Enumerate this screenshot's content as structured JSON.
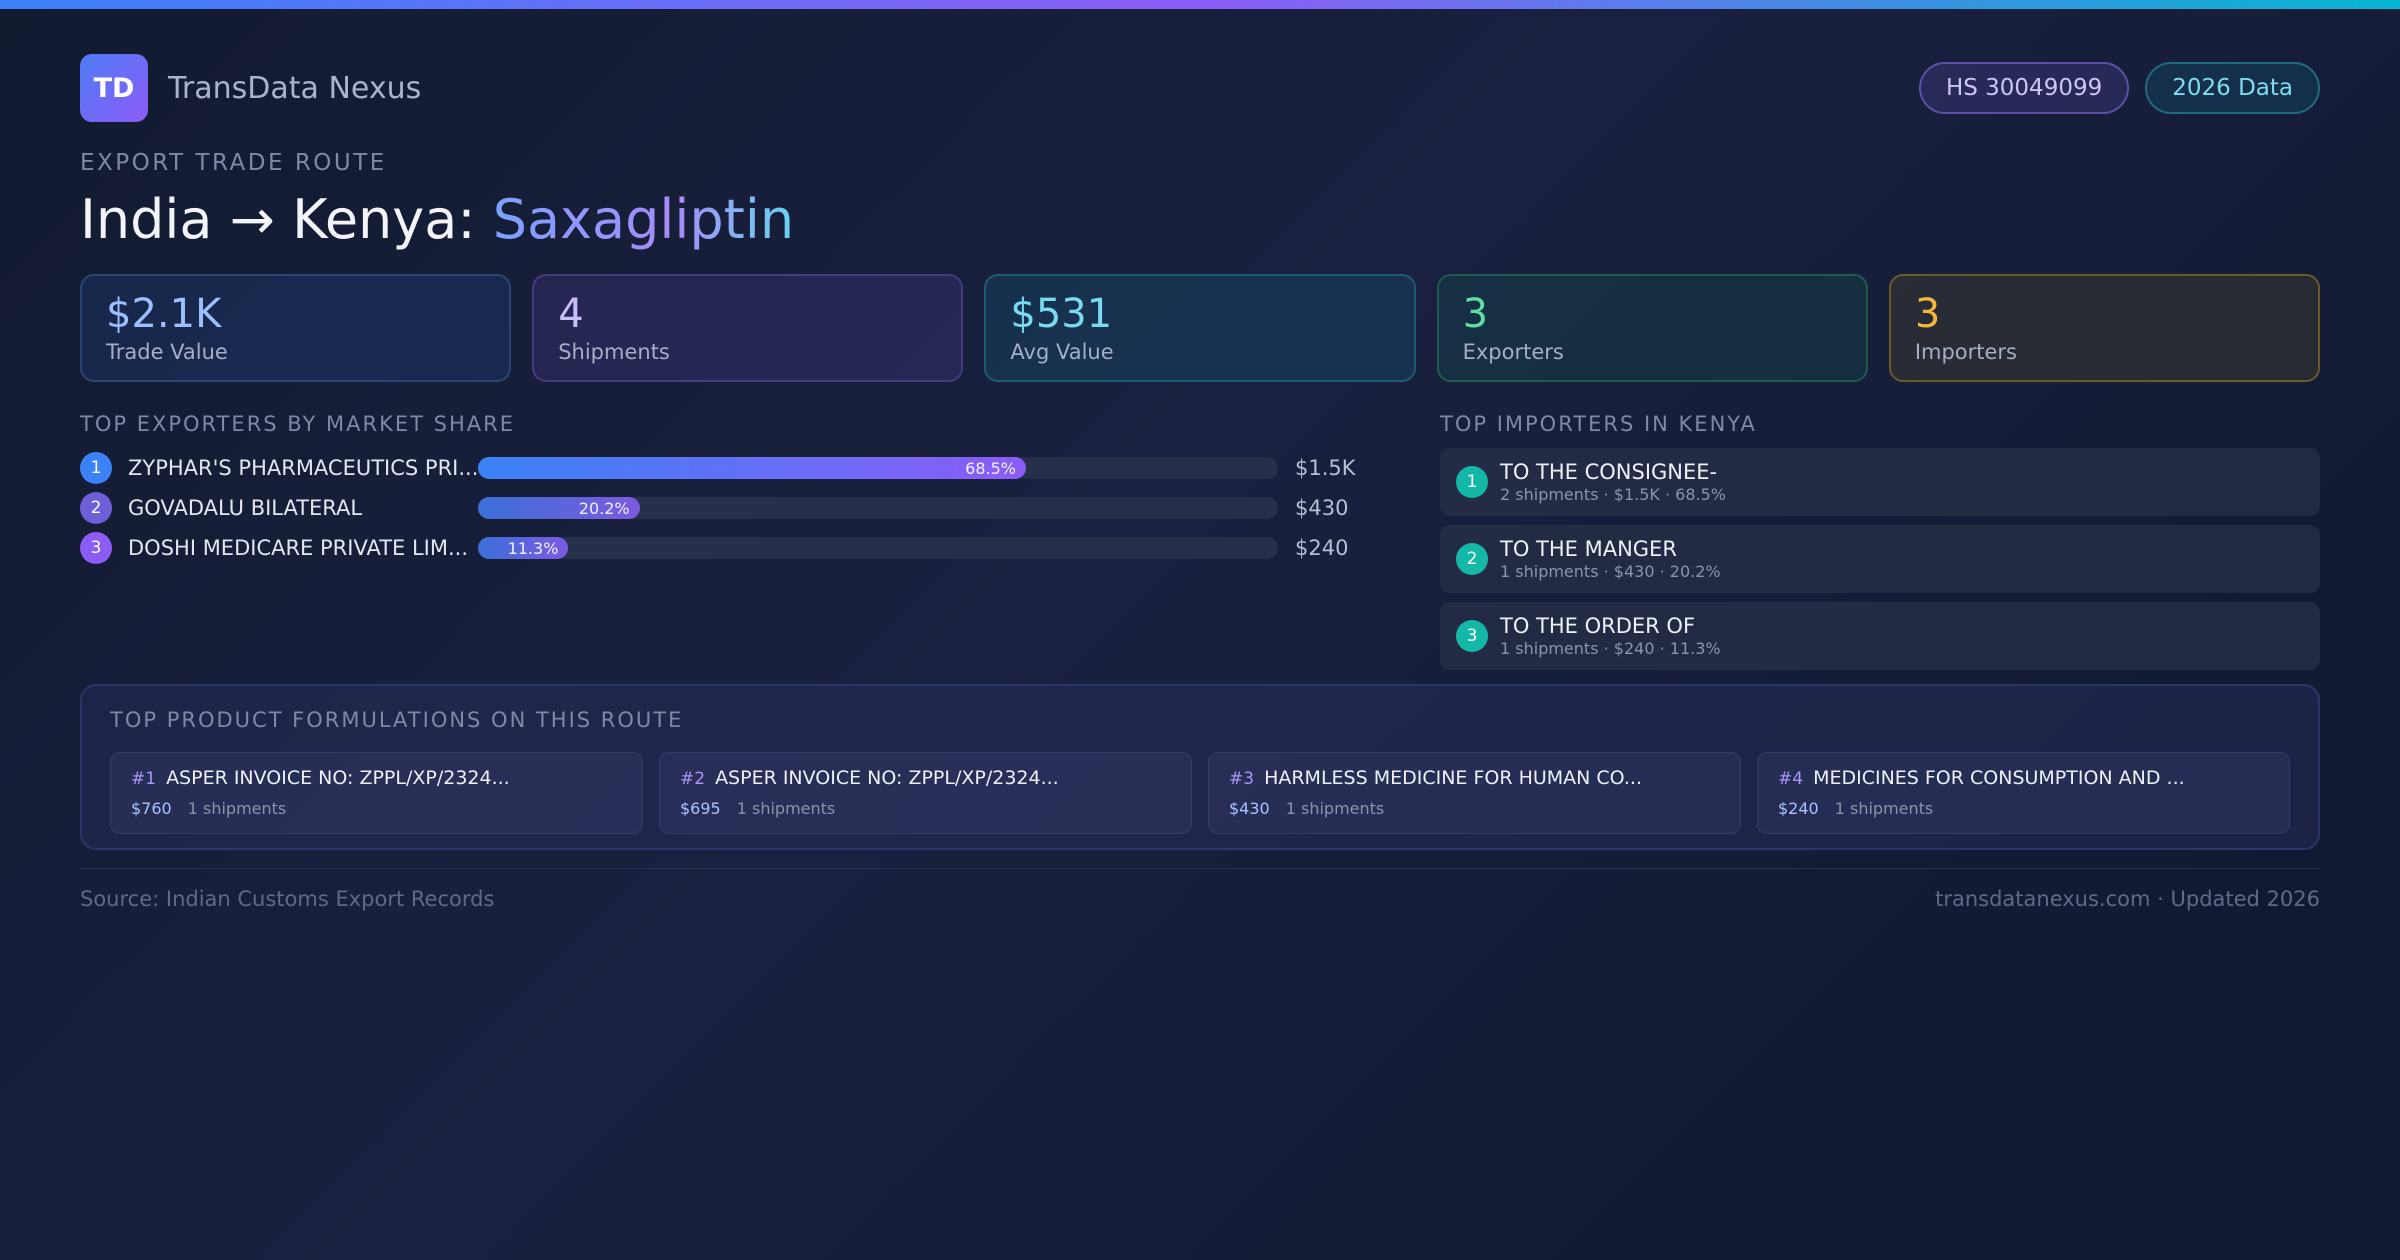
{
  "brand": {
    "logo_text": "TD",
    "name": "TransData Nexus"
  },
  "badges": {
    "hs_code": "HS 30049099",
    "data_year": "2026 Data"
  },
  "route": {
    "eyebrow": "EXPORT TRADE ROUTE",
    "title_prefix": "India → Kenya: ",
    "title_accent": "Saxagliptin"
  },
  "stats": [
    {
      "value": "$2.1K",
      "label": "Trade Value"
    },
    {
      "value": "4",
      "label": "Shipments"
    },
    {
      "value": "$531",
      "label": "Avg Value"
    },
    {
      "value": "3",
      "label": "Exporters"
    },
    {
      "value": "3",
      "label": "Importers"
    }
  ],
  "exporters": {
    "title": "TOP EXPORTERS BY MARKET SHARE",
    "items": [
      {
        "rank": "1",
        "name": "ZYPHAR'S PHARMACEUTICS PRI...",
        "share": 68.5,
        "share_label": "68.5%",
        "value": "$1.5K"
      },
      {
        "rank": "2",
        "name": "GOVADALU BILATERAL",
        "share": 20.2,
        "share_label": "20.2%",
        "value": "$430"
      },
      {
        "rank": "3",
        "name": "DOSHI MEDICARE PRIVATE LIM...",
        "share": 11.3,
        "share_label": "11.3%",
        "value": "$240"
      }
    ]
  },
  "importers": {
    "title": "TOP IMPORTERS IN KENYA",
    "items": [
      {
        "rank": "1",
        "name": "TO THE CONSIGNEE-",
        "meta": "2 shipments · $1.5K · 68.5%"
      },
      {
        "rank": "2",
        "name": "TO THE MANGER",
        "meta": "1 shipments · $430 · 20.2%"
      },
      {
        "rank": "3",
        "name": "TO THE ORDER OF",
        "meta": "1 shipments · $240 · 11.3%"
      }
    ]
  },
  "formulations": {
    "title": "TOP PRODUCT FORMULATIONS ON THIS ROUTE",
    "items": [
      {
        "num": "#1",
        "name": "ASPER INVOICE NO: ZPPL/XP/2324...",
        "amount": "$760",
        "count": "1 shipments"
      },
      {
        "num": "#2",
        "name": "ASPER INVOICE NO: ZPPL/XP/2324...",
        "amount": "$695",
        "count": "1 shipments"
      },
      {
        "num": "#3",
        "name": "HARMLESS MEDICINE FOR HUMAN CO...",
        "amount": "$430",
        "count": "1 shipments"
      },
      {
        "num": "#4",
        "name": "MEDICINES FOR CONSUMPTION AND ...",
        "amount": "$240",
        "count": "1 shipments"
      }
    ]
  },
  "footer": {
    "source": "Source: Indian Customs Export Records",
    "site": "transdatanexus.com · Updated 2026"
  },
  "colors": {
    "accent_blue": "#3b82f6",
    "accent_purple": "#8b5cf6",
    "accent_cyan": "#06b6d4",
    "importer_teal": "#14b8a6"
  }
}
